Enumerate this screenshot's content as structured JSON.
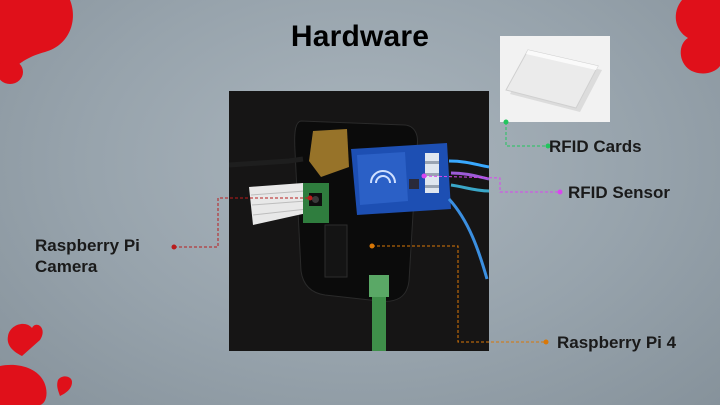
{
  "slide": {
    "title": "Hardware",
    "labels": {
      "rfid_cards": "RFID Cards",
      "rfid_sensor": "RFID Sensor",
      "camera_line1": "Raspberry Pi",
      "camera_line2": "Camera",
      "pi4": "Raspberry Pi 4"
    },
    "leader_colors": {
      "rfid_cards": "#22c55e",
      "rfid_sensor": "#d946ef",
      "camera": "#b91c1c",
      "pi4": "#d97706"
    },
    "decor_color": "#e0101a"
  }
}
